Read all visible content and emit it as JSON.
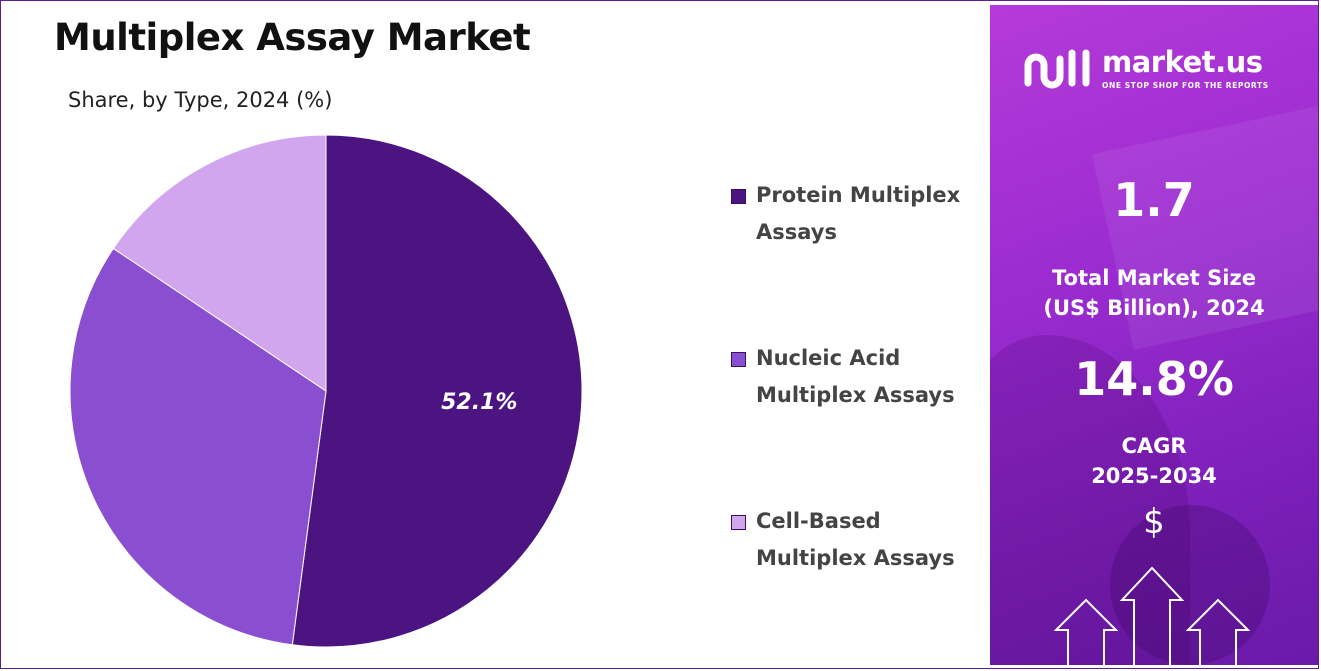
{
  "chart_data": {
    "type": "pie",
    "title": "Multiplex Assay Market",
    "subtitle": "Share, by Type, 2024 (%)",
    "slices": [
      {
        "name": "Protein Multiplex Assays",
        "value": 52.1,
        "color": "#4b1480",
        "label": "52.1%"
      },
      {
        "name": "Nucleic Acid Multiplex Assays",
        "value": 32.3,
        "color": "#8a4fd1",
        "label": ""
      },
      {
        "name": "Cell-Based Multiplex Assays",
        "value": 15.6,
        "color": "#d1a6ee",
        "label": ""
      }
    ],
    "legend_position": "right"
  },
  "legend": {
    "items": [
      {
        "line1": "Protein Multiplex",
        "line2": "Assays",
        "color": "#4b1480"
      },
      {
        "line1": "Nucleic Acid",
        "line2": "Multiplex Assays",
        "color": "#8a4fd1"
      },
      {
        "line1": "Cell-Based",
        "line2": "Multiplex Assays",
        "color": "#d1a6ee"
      }
    ]
  },
  "sidebar": {
    "logo_name": "market.us",
    "logo_tagline": "ONE STOP SHOP FOR THE REPORTS",
    "market_size_value": "1.7",
    "market_size_label_1": "Total Market Size",
    "market_size_label_2": "(US$ Billion), 2024",
    "cagr_value": "14.8%",
    "cagr_label_1": "CAGR",
    "cagr_label_2": "2025-2034",
    "currency_symbol": "$",
    "icons": [
      "market-us-logo-icon",
      "dollar-icon",
      "up-arrow-icon"
    ]
  },
  "colors": {
    "accent": "#4b1480",
    "panel": "#9a2bd0",
    "border": "#5b1e8f"
  }
}
